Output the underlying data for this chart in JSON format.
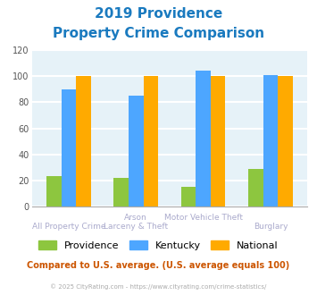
{
  "title_line1": "2019 Providence",
  "title_line2": "Property Crime Comparison",
  "title_color": "#1a7abf",
  "categories": [
    "All Property Crime",
    "Arson\nLarceny & Theft",
    "Motor Vehicle Theft",
    "Burglary"
  ],
  "x_labels_top": [
    "",
    "Arson",
    "Motor Vehicle Theft",
    ""
  ],
  "x_labels_bottom": [
    "All Property Crime",
    "Larceny & Theft",
    "",
    "Burglary"
  ],
  "series": {
    "Providence": [
      23,
      22,
      15,
      29
    ],
    "Kentucky": [
      90,
      85,
      104,
      101
    ],
    "National": [
      100,
      100,
      100,
      100
    ]
  },
  "colors": {
    "Providence": "#8dc63f",
    "Kentucky": "#4da6ff",
    "National": "#ffaa00"
  },
  "ylim": [
    0,
    120
  ],
  "yticks": [
    0,
    20,
    40,
    60,
    80,
    100,
    120
  ],
  "background_color": "#e6f2f8",
  "grid_color": "#ffffff",
  "footer_text": "Compared to U.S. average. (U.S. average equals 100)",
  "footer_color": "#cc5500",
  "credit_text": "© 2025 CityRating.com - https://www.cityrating.com/crime-statistics/",
  "credit_color": "#aaaaaa",
  "bar_width": 0.22
}
